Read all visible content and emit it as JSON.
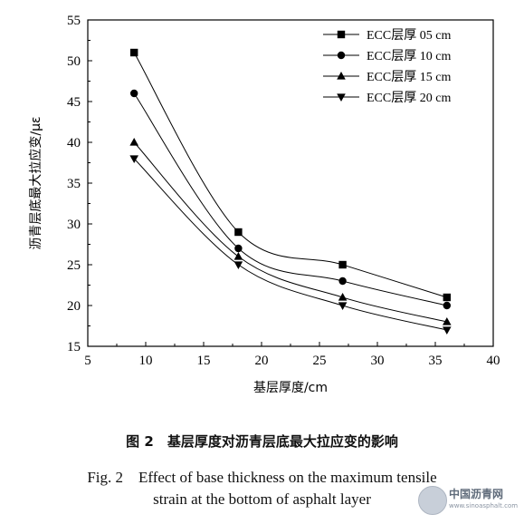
{
  "chart_data": {
    "type": "line",
    "xlabel": "基层厚度/cm",
    "ylabel": "沥青层底最大拉应变/με",
    "xlim": [
      5,
      40
    ],
    "ylim": [
      15,
      55
    ],
    "xticks": [
      "5",
      "10",
      "15",
      "20",
      "25",
      "30",
      "35",
      "40"
    ],
    "yticks": [
      "15",
      "20",
      "25",
      "30",
      "35",
      "40",
      "45",
      "50",
      "55"
    ],
    "x": [
      9,
      18,
      27,
      36
    ],
    "series": [
      {
        "name": "ECC层厚 05 cm",
        "marker": "square",
        "values": [
          51,
          29,
          25,
          21
        ]
      },
      {
        "name": "ECC层厚 10 cm",
        "marker": "circle",
        "values": [
          46,
          27,
          23,
          20
        ]
      },
      {
        "name": "ECC层厚 15 cm",
        "marker": "triangle-up",
        "values": [
          40,
          26,
          21,
          18
        ]
      },
      {
        "name": "ECC层厚 20 cm",
        "marker": "triangle-down",
        "values": [
          38,
          25,
          20,
          17
        ]
      }
    ],
    "legend_position": "top-right",
    "grid": false,
    "color": "#000000"
  },
  "caption": {
    "cn": "图 2　基层厚度对沥青层底最大拉应变的影响",
    "en_line1": "Fig. 2　Effect of base thickness on the maximum tensile",
    "en_line2": "strain at the bottom of asphalt layer"
  },
  "watermark": {
    "text": "中国沥青网",
    "url": "www.sinoasphalt.com"
  }
}
